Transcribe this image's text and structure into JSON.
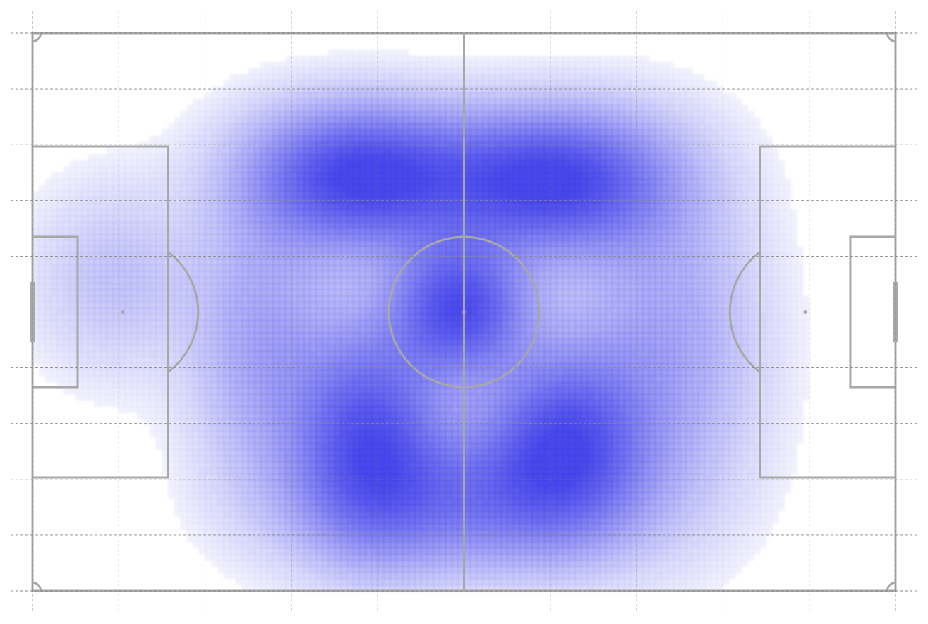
{
  "chart_data": {
    "type": "heatmap",
    "subtype": "kde-density-on-football-pitch",
    "pitch": {
      "length": 105,
      "width": 68,
      "units": "m",
      "orientation": "horizontal"
    },
    "title": "",
    "xlabel": "",
    "ylabel": "",
    "xlim": [
      0,
      105
    ],
    "ylim": [
      0,
      68
    ],
    "grid": true,
    "grid_x": [
      0,
      10.5,
      21,
      31.5,
      42,
      52.5,
      63,
      73.5,
      84,
      94.5,
      105
    ],
    "grid_y": [
      0,
      6.8,
      13.6,
      20.4,
      27.2,
      34,
      40.8,
      47.6,
      54.4,
      61.2,
      68
    ],
    "colors": {
      "density": "#3535e8",
      "pitch_line": "#a8a8a8",
      "grid": "#888888",
      "background": "#ffffff"
    },
    "density_peaks": [
      {
        "x": 40.0,
        "y": 50.5,
        "sx": 9.0,
        "sy": 5.8,
        "weight": 1.0
      },
      {
        "x": 63.0,
        "y": 50.0,
        "sx": 9.5,
        "sy": 5.8,
        "weight": 1.0
      },
      {
        "x": 52.0,
        "y": 34.5,
        "sx": 5.5,
        "sy": 5.5,
        "weight": 0.9
      },
      {
        "x": 41.0,
        "y": 19.5,
        "sx": 6.0,
        "sy": 9.0,
        "weight": 0.8
      },
      {
        "x": 64.5,
        "y": 18.5,
        "sx": 6.5,
        "sy": 7.5,
        "weight": 0.8
      },
      {
        "x": 52.5,
        "y": 11.0,
        "sx": 13.0,
        "sy": 6.0,
        "weight": 0.55
      },
      {
        "x": 10.0,
        "y": 38.0,
        "sx": 7.0,
        "sy": 8.0,
        "weight": 0.2
      },
      {
        "x": 77.0,
        "y": 30.0,
        "sx": 8.0,
        "sy": 14.0,
        "weight": 0.35
      },
      {
        "x": 28.0,
        "y": 30.0,
        "sx": 6.0,
        "sy": 12.0,
        "weight": 0.35
      }
    ]
  }
}
